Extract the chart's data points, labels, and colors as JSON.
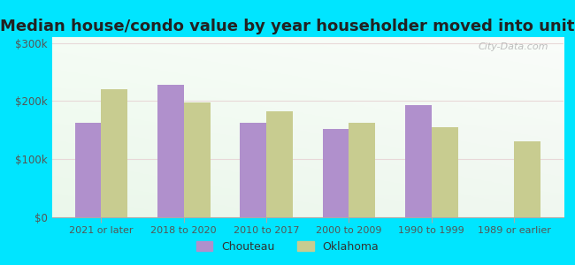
{
  "title": "Median house/condo value by year householder moved into unit",
  "categories": [
    "2021 or later",
    "2018 to 2020",
    "2010 to 2017",
    "2000 to 2009",
    "1990 to 1999",
    "1989 or earlier"
  ],
  "chouteau_values": [
    162000,
    228000,
    163000,
    152000,
    193000,
    null
  ],
  "oklahoma_values": [
    220000,
    197000,
    182000,
    163000,
    155000,
    130000
  ],
  "chouteau_color": "#b090cc",
  "oklahoma_color": "#c8cc90",
  "background_outer": "#00e5ff",
  "ylabel_ticks": [
    "$0",
    "$100k",
    "$200k",
    "$300k"
  ],
  "ytick_values": [
    0,
    100000,
    200000,
    300000
  ],
  "ylim": [
    0,
    310000
  ],
  "bar_width": 0.32,
  "title_fontsize": 13,
  "legend_labels": [
    "Chouteau",
    "Oklahoma"
  ],
  "watermark": "City-Data.com"
}
